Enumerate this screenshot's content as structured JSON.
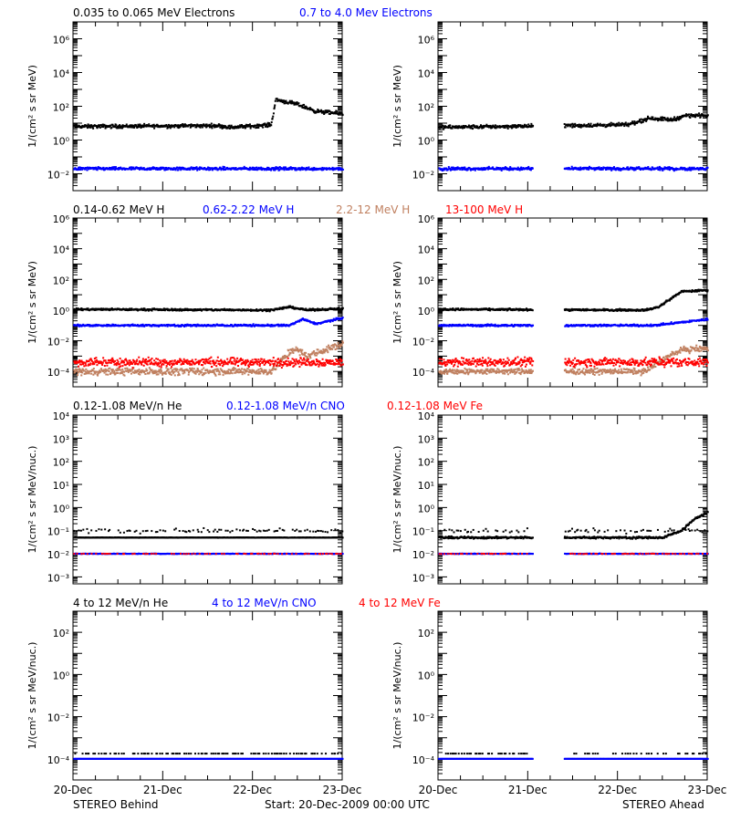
{
  "footer": {
    "left": "STEREO Behind",
    "center": "Start: 20-Dec-2009 00:00 UTC",
    "right": "STEREO Ahead"
  },
  "x_tick_labels": [
    "20-Dec",
    "21-Dec",
    "22-Dec",
    "23-Dec"
  ],
  "colors": {
    "black": "#000000",
    "blue": "#0000ff",
    "tan": "#c08060",
    "red": "#ff0000"
  },
  "chart_data": [
    {
      "type": "scatter",
      "group": 0,
      "spacecraft": "STEREO Behind",
      "ylabel": "1/(cm² s sr MeV)",
      "ylim_exp": [
        -3,
        7
      ],
      "yticks_exp": [
        -2,
        0,
        2,
        4,
        6
      ],
      "legend": [
        {
          "text": "0.035 to 0.065 MeV Electrons",
          "color": "#000000"
        },
        {
          "text": "0.7 to 4.0 Mev Electrons",
          "color": "#0000ff"
        }
      ],
      "series": [
        {
          "color": "#000000",
          "profile": [
            [
              0,
              0.8
            ],
            [
              1.6,
              0.85
            ],
            [
              1.75,
              0.75
            ],
            [
              2.2,
              0.9
            ],
            [
              2.25,
              2.4
            ],
            [
              2.5,
              2.1
            ],
            [
              2.7,
              1.7
            ],
            [
              3,
              1.55
            ]
          ],
          "scatter": 0.12
        },
        {
          "color": "#0000ff",
          "profile": [
            [
              0,
              -1.7
            ],
            [
              3,
              -1.7
            ]
          ],
          "scatter": 0.1
        }
      ]
    },
    {
      "type": "scatter",
      "group": 0,
      "spacecraft": "STEREO Ahead",
      "ylabel": "1/(cm² s sr MeV)",
      "ylim_exp": [
        -3,
        7
      ],
      "yticks_exp": [
        -2,
        0,
        2,
        4,
        6
      ],
      "gap": [
        1.05,
        1.4
      ],
      "series": [
        {
          "color": "#000000",
          "profile": [
            [
              0,
              0.75
            ],
            [
              2.1,
              0.9
            ],
            [
              2.35,
              1.3
            ],
            [
              2.6,
              1.2
            ],
            [
              2.75,
              1.45
            ],
            [
              3,
              1.45
            ]
          ],
          "scatter": 0.12
        },
        {
          "color": "#0000ff",
          "profile": [
            [
              0,
              -1.7
            ],
            [
              3,
              -1.7
            ]
          ],
          "scatter": 0.1
        }
      ]
    },
    {
      "type": "scatter",
      "group": 1,
      "spacecraft": "STEREO Behind",
      "ylabel": "1/(cm² s sr MeV)",
      "ylim_exp": [
        -5,
        6
      ],
      "yticks_exp": [
        -4,
        -2,
        0,
        2,
        4,
        6
      ],
      "legend": [
        {
          "text": "0.14-0.62 MeV H",
          "color": "#000000"
        },
        {
          "text": "0.62-2.22 MeV H",
          "color": "#0000ff"
        },
        {
          "text": "2.2-12 MeV H",
          "color": "#c08060"
        },
        {
          "text": "13-100 MeV H",
          "color": "#ff0000"
        }
      ],
      "series": [
        {
          "color": "#000000",
          "profile": [
            [
              0,
              0.05
            ],
            [
              2.2,
              0.0
            ],
            [
              2.4,
              0.2
            ],
            [
              2.6,
              0.0
            ],
            [
              3,
              0.1
            ]
          ],
          "scatter": 0.07
        },
        {
          "color": "#0000ff",
          "profile": [
            [
              0,
              -1.0
            ],
            [
              2.4,
              -1.0
            ],
            [
              2.55,
              -0.6
            ],
            [
              2.7,
              -0.9
            ],
            [
              3,
              -0.5
            ]
          ],
          "scatter": 0.07
        },
        {
          "color": "#c08060",
          "profile": [
            [
              0,
              -4.0
            ],
            [
              2.2,
              -4.0
            ],
            [
              2.3,
              -3.4
            ],
            [
              2.45,
              -2.5
            ],
            [
              2.6,
              -3.0
            ],
            [
              3,
              -2.2
            ]
          ],
          "scatter": 0.25
        },
        {
          "color": "#ff0000",
          "profile": [
            [
              0,
              -3.4
            ],
            [
              3,
              -3.4
            ]
          ],
          "scatter": 0.3
        }
      ]
    },
    {
      "type": "scatter",
      "group": 1,
      "spacecraft": "STEREO Ahead",
      "ylabel": "1/(cm² s sr MeV)",
      "ylim_exp": [
        -5,
        6
      ],
      "yticks_exp": [
        -4,
        -2,
        0,
        2,
        4,
        6
      ],
      "gap": [
        1.05,
        1.4
      ],
      "series": [
        {
          "color": "#000000",
          "profile": [
            [
              0,
              0.05
            ],
            [
              2.3,
              0.0
            ],
            [
              2.45,
              0.2
            ],
            [
              2.6,
              0.8
            ],
            [
              2.7,
              1.2
            ],
            [
              3,
              1.3
            ]
          ],
          "scatter": 0.07
        },
        {
          "color": "#0000ff",
          "profile": [
            [
              0,
              -1.0
            ],
            [
              2.4,
              -1.0
            ],
            [
              2.7,
              -0.8
            ],
            [
              3,
              -0.6
            ]
          ],
          "scatter": 0.07
        },
        {
          "color": "#c08060",
          "profile": [
            [
              0,
              -4.0
            ],
            [
              2.3,
              -4.0
            ],
            [
              2.5,
              -3.2
            ],
            [
              2.7,
              -2.6
            ],
            [
              3,
              -2.5
            ]
          ],
          "scatter": 0.2
        },
        {
          "color": "#ff0000",
          "profile": [
            [
              0,
              -3.4
            ],
            [
              3,
              -3.4
            ]
          ],
          "scatter": 0.3
        }
      ]
    },
    {
      "type": "scatter",
      "group": 2,
      "spacecraft": "STEREO Behind",
      "ylabel": "1/(cm² s sr MeV/nuc.)",
      "ylim_exp": [
        -3.3,
        4
      ],
      "yticks_exp": [
        -3,
        -2,
        -1,
        0,
        1,
        2,
        3,
        4
      ],
      "legend": [
        {
          "text": "0.12-1.08 MeV/n He",
          "color": "#000000"
        },
        {
          "text": "0.12-1.08 MeV/n CNO",
          "color": "#0000ff"
        },
        {
          "text": "0.12-1.08 MeV Fe",
          "color": "#ff0000"
        }
      ],
      "series": [
        {
          "color": "#000000",
          "profile": [
            [
              0,
              -1.3
            ],
            [
              3,
              -1.3
            ]
          ],
          "scatter": 0.01
        },
        {
          "color": "#000000",
          "profile": [
            [
              0,
              -1.0
            ],
            [
              3,
              -1.0
            ]
          ],
          "scatter": 0.1,
          "sparse": true
        },
        {
          "color": "#0000ff",
          "profile": [
            [
              0,
              -2.0
            ],
            [
              3,
              -2.0
            ]
          ],
          "scatter": 0.01
        },
        {
          "color": "#ff0000",
          "profile": [
            [
              0,
              -2.0
            ],
            [
              3,
              -2.0
            ]
          ],
          "scatter": 0.01,
          "sparse": true
        }
      ]
    },
    {
      "type": "scatter",
      "group": 2,
      "spacecraft": "STEREO Ahead",
      "ylabel": "1/(cm² s sr MeV/nuc.)",
      "ylim_exp": [
        -3.3,
        4
      ],
      "yticks_exp": [
        -3,
        -2,
        -1,
        0,
        1,
        2,
        3,
        4
      ],
      "gap": [
        1.05,
        1.4
      ],
      "series": [
        {
          "color": "#000000",
          "profile": [
            [
              0,
              -1.3
            ],
            [
              2.5,
              -1.3
            ],
            [
              2.7,
              -1.0
            ],
            [
              2.85,
              -0.5
            ],
            [
              3,
              -0.2
            ]
          ],
          "scatter": 0.05
        },
        {
          "color": "#000000",
          "profile": [
            [
              0,
              -1.0
            ],
            [
              3,
              -1.0
            ]
          ],
          "scatter": 0.1,
          "sparse": true
        },
        {
          "color": "#0000ff",
          "profile": [
            [
              0,
              -2.0
            ],
            [
              3,
              -2.0
            ]
          ],
          "scatter": 0.01
        },
        {
          "color": "#ff0000",
          "profile": [
            [
              0,
              -2.0
            ],
            [
              3,
              -2.0
            ]
          ],
          "scatter": 0.01,
          "sparse": true
        }
      ]
    },
    {
      "type": "scatter",
      "group": 3,
      "spacecraft": "STEREO Behind",
      "ylabel": "1/(cm² s sr MeV/nuc.)",
      "ylim_exp": [
        -5,
        3
      ],
      "yticks_exp": [
        -4,
        -2,
        0,
        2
      ],
      "legend": [
        {
          "text": "4 to 12 MeV/n He",
          "color": "#000000"
        },
        {
          "text": "4 to 12 MeV/n CNO",
          "color": "#0000ff"
        },
        {
          "text": "4 to 12 MeV Fe",
          "color": "#ff0000"
        }
      ],
      "series": [
        {
          "color": "#0000ff",
          "profile": [
            [
              0,
              -4.0
            ],
            [
              3,
              -4.0
            ]
          ],
          "scatter": 0.0
        },
        {
          "color": "#000000",
          "profile": [
            [
              0,
              -3.75
            ],
            [
              3,
              -3.75
            ]
          ],
          "scatter": 0.0,
          "sparse": true
        }
      ]
    },
    {
      "type": "scatter",
      "group": 3,
      "spacecraft": "STEREO Ahead",
      "ylabel": "1/(cm² s sr MeV/nuc.)",
      "ylim_exp": [
        -5,
        3
      ],
      "yticks_exp": [
        -4,
        -2,
        0,
        2
      ],
      "gap": [
        1.05,
        1.4
      ],
      "series": [
        {
          "color": "#0000ff",
          "profile": [
            [
              0,
              -4.0
            ],
            [
              3,
              -4.0
            ]
          ],
          "scatter": 0.0
        },
        {
          "color": "#000000",
          "profile": [
            [
              0,
              -3.75
            ],
            [
              3,
              -3.75
            ]
          ],
          "scatter": 0.0,
          "sparse": true
        }
      ]
    }
  ]
}
